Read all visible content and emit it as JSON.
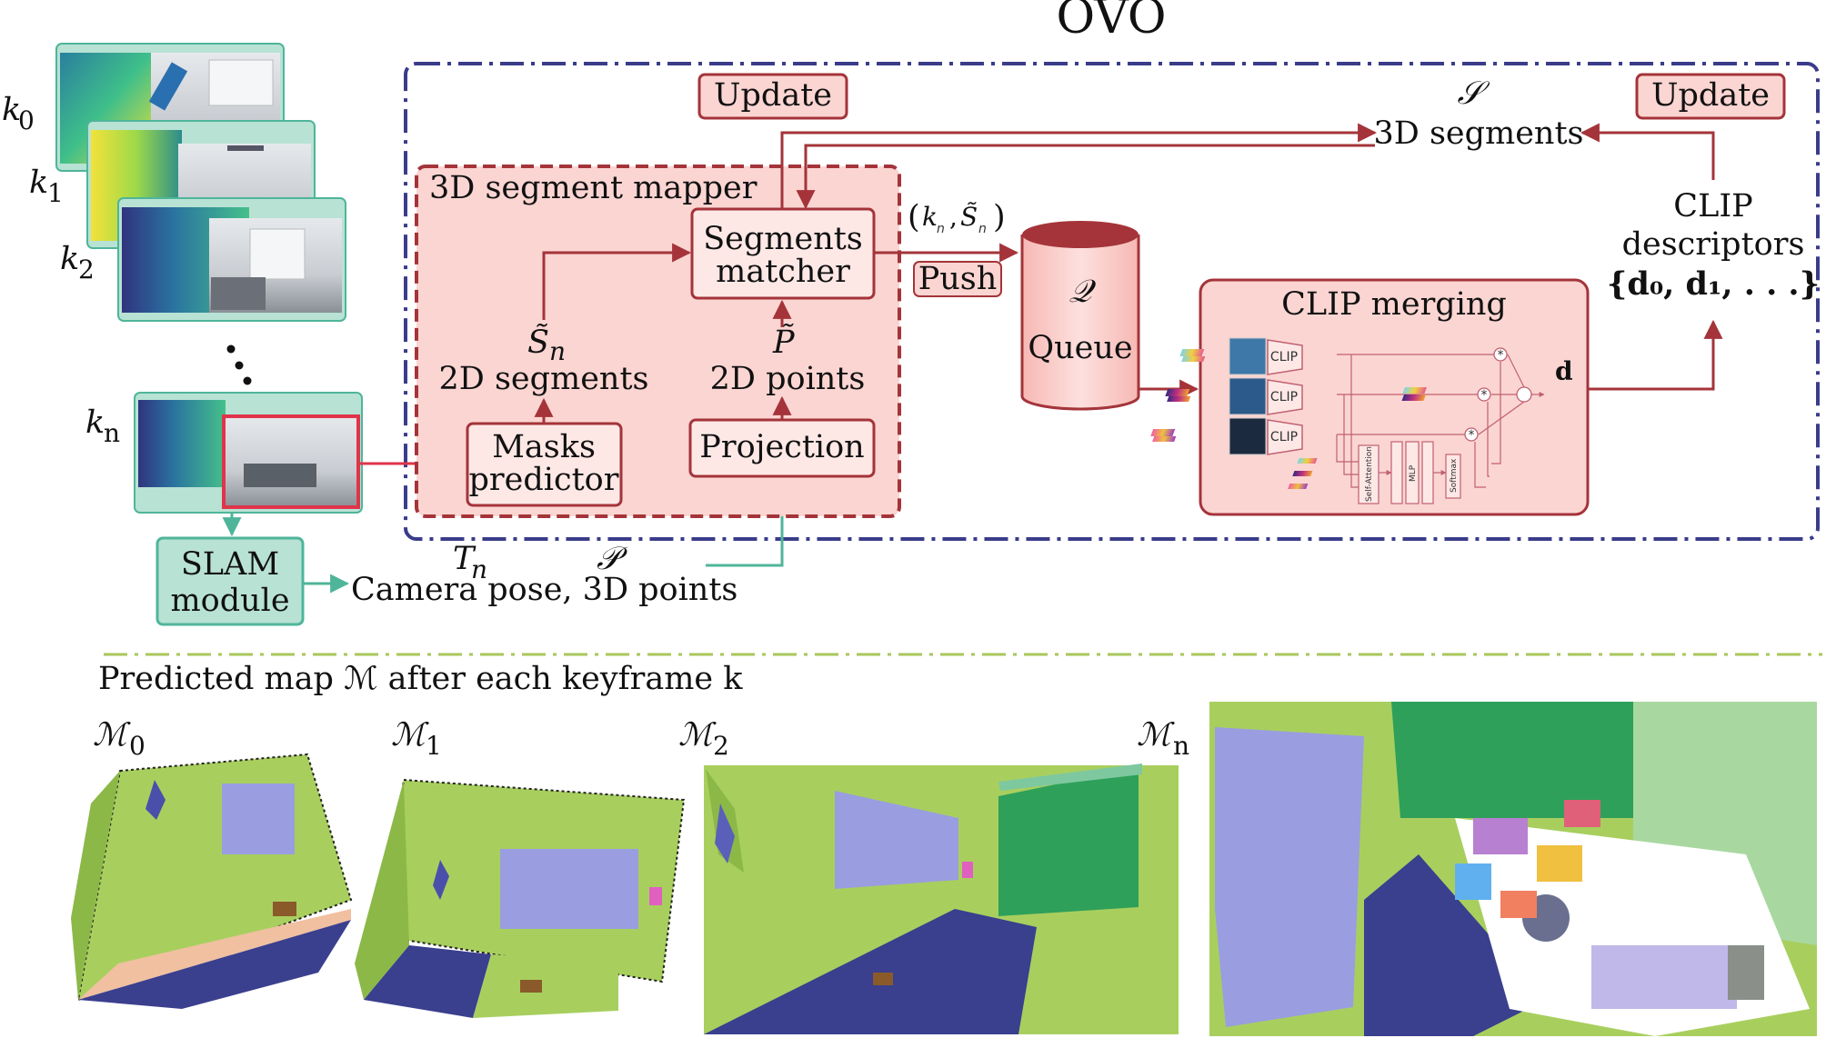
{
  "title": "OVO",
  "keyframes": {
    "k0": "k",
    "k0_sub": "0",
    "k1": "k",
    "k1_sub": "1",
    "k2": "k",
    "k2_sub": "2",
    "kn": "k",
    "kn_sub": "n"
  },
  "slam": {
    "line1": "SLAM",
    "line2": "module"
  },
  "camera": {
    "Tn": "T",
    "Tn_sub": "n",
    "P": "𝒫",
    "text": "Camera pose, 3D points"
  },
  "mapper": {
    "title": "3D segment mapper",
    "masks": [
      "Masks",
      "predictor"
    ],
    "projection": "Projection",
    "matcher": [
      "Segments",
      "matcher"
    ],
    "segments2d_sym": "S̃",
    "segments2d_sub": "n",
    "segments2d": "2D segments",
    "points2d_sym": "P̃",
    "points2d": "2D points"
  },
  "update_left": "Update",
  "update_right": "Update",
  "segments3d": {
    "sym": "𝒮",
    "label": "3D segments"
  },
  "push": "Push",
  "tuple": {
    "k": "k",
    "k_sub": "n",
    "S": "S̃",
    "S_sub": "n"
  },
  "queue": {
    "sym": "𝒬",
    "label": "Queue"
  },
  "clip_merging": {
    "title": "CLIP merging",
    "clip": [
      "CLIP",
      "CLIP",
      "CLIP"
    ],
    "self_attention": "Self-Attention",
    "mlp": "MLP",
    "softmax": "Softmax",
    "d": "d"
  },
  "descriptors": {
    "line1": "CLIP",
    "line2": "descriptors",
    "line3": "{d₀, d₁, . . .}"
  },
  "bottom": {
    "caption": "Predicted map ℳ after each keyframe k",
    "m0": "ℳ",
    "m0_sub": "0",
    "m1": "ℳ",
    "m1_sub": "1",
    "m2": "ℳ",
    "m2_sub": "2",
    "mn": "ℳ",
    "mn_sub": "n"
  },
  "colors": {
    "frame": "#3a3c8a",
    "red": "#a4343a",
    "pink_fill": "#fbd5d2",
    "teal": "#4fb59a",
    "teal_fill": "#b8e2d4",
    "green_sep": "#a8c75a",
    "wall_green": "#a8cf5e",
    "floor_blue": "#3a3f8e",
    "board_lavender": "#9a9de0",
    "dark_green": "#2ea05a"
  }
}
